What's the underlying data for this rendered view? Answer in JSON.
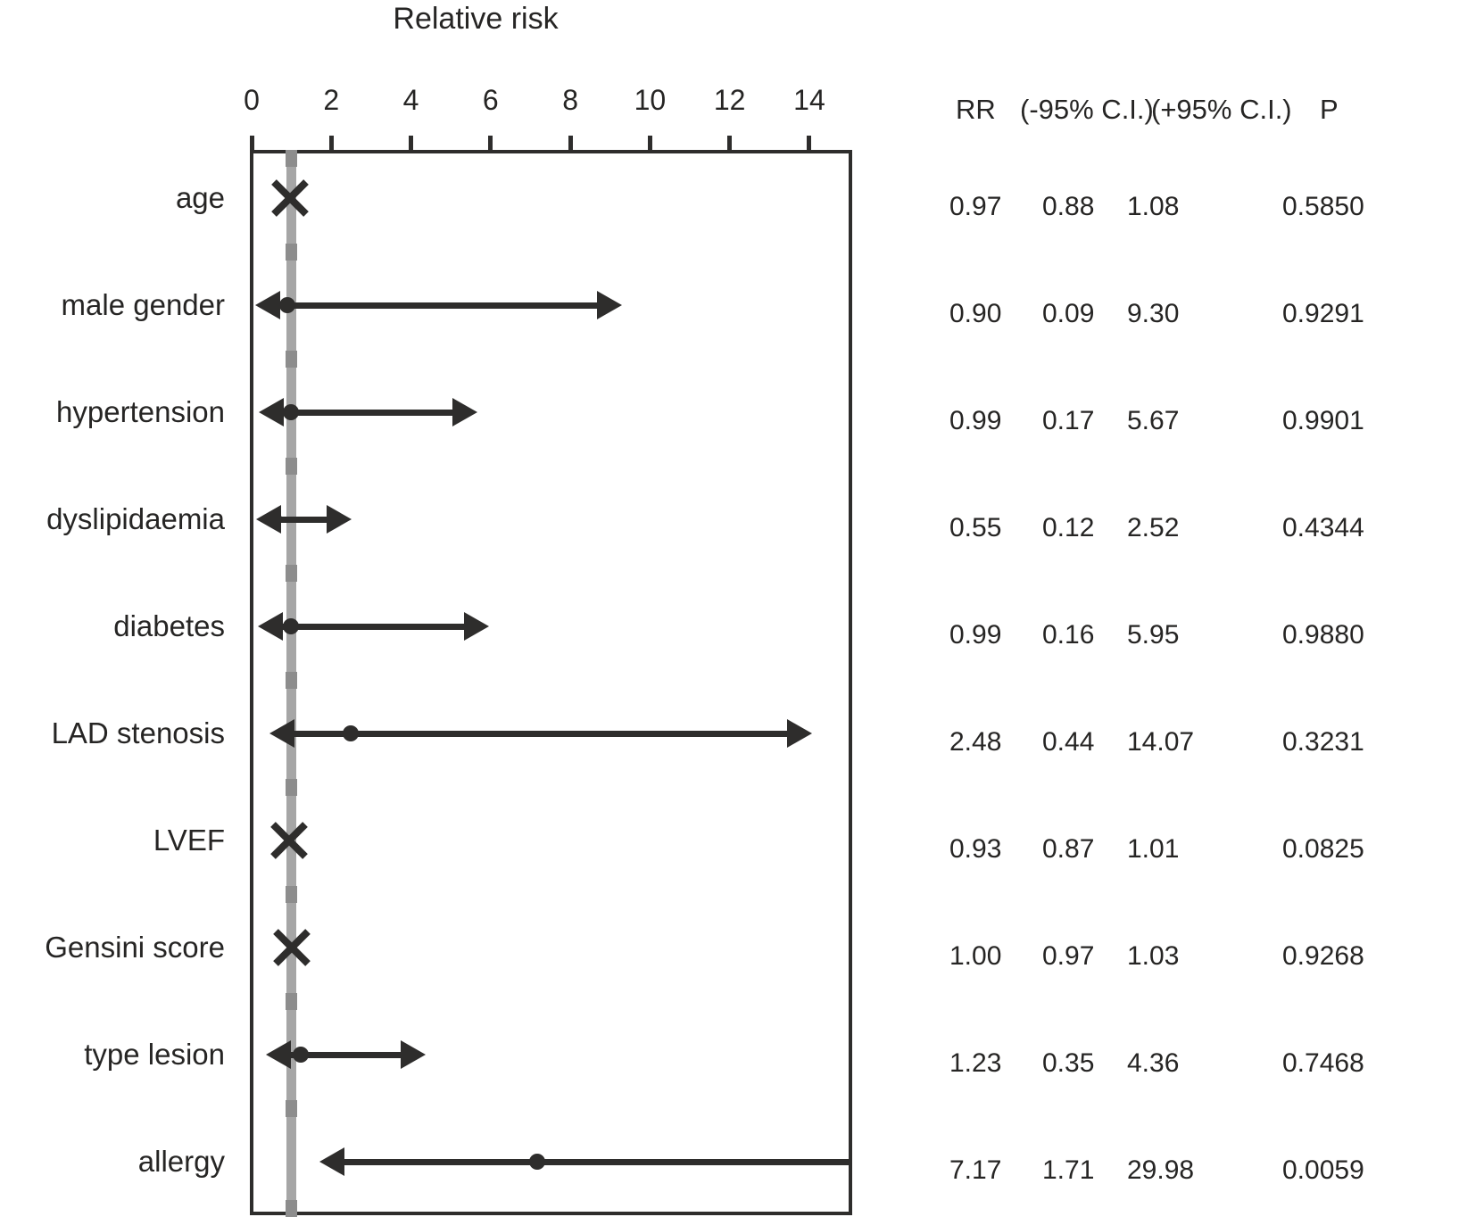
{
  "colors": {
    "ink": "#2e2d2c",
    "text": "#262524",
    "reference_line_gray": "#a6a6a6",
    "reference_dash_gray": "#8d8d8d"
  },
  "chart_data": {
    "type": "forest",
    "title": "Relative risk",
    "x_ticks": [
      0,
      2,
      4,
      6,
      8,
      10,
      12,
      14
    ],
    "xlim": [
      0,
      15
    ],
    "reference_line_x": 1,
    "grid": "off",
    "table_headers": {
      "rr": "RR",
      "ci_low": "(-95% C.I.)",
      "ci_high": "(+95% C.I.)",
      "p": "P"
    },
    "rows": [
      {
        "label": "age",
        "rr": "0.97",
        "ci_low": "0.88",
        "ci_high": "1.08",
        "p": "0.5850",
        "marker": "x"
      },
      {
        "label": "male gender",
        "rr": "0.90",
        "ci_low": "0.09",
        "ci_high": "9.30",
        "p": "0.9291",
        "marker": "arrow"
      },
      {
        "label": "hypertension",
        "rr": "0.99",
        "ci_low": "0.17",
        "ci_high": "5.67",
        "p": "0.9901",
        "marker": "arrow"
      },
      {
        "label": "dyslipidaemia",
        "rr": "0.55",
        "ci_low": "0.12",
        "ci_high": "2.52",
        "p": "0.4344",
        "marker": "arrow"
      },
      {
        "label": "diabetes",
        "rr": "0.99",
        "ci_low": "0.16",
        "ci_high": "5.95",
        "p": "0.9880",
        "marker": "arrow"
      },
      {
        "label": "LAD stenosis",
        "rr": "2.48",
        "ci_low": "0.44",
        "ci_high": "14.07",
        "p": "0.3231",
        "marker": "arrow"
      },
      {
        "label": "LVEF",
        "rr": "0.93",
        "ci_low": "0.87",
        "ci_high": "1.01",
        "p": "0.0825",
        "marker": "x"
      },
      {
        "label": "Gensini score",
        "rr": "1.00",
        "ci_low": "0.97",
        "ci_high": "1.03",
        "p": "0.9268",
        "marker": "x"
      },
      {
        "label": "type lesion",
        "rr": "1.23",
        "ci_low": "0.35",
        "ci_high": "4.36",
        "p": "0.7468",
        "marker": "arrow"
      },
      {
        "label": "allergy",
        "rr": "7.17",
        "ci_low": "1.71",
        "ci_high": "29.98",
        "p": "0.0059",
        "marker": "arrow"
      }
    ]
  }
}
